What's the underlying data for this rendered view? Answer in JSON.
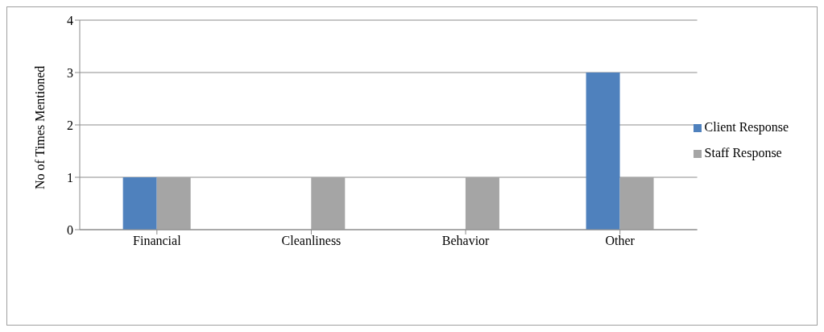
{
  "chart_data": {
    "type": "bar",
    "ylabel": "No of Times Mentioned",
    "categories": [
      "Financial",
      "Cleanliness",
      "Behavior",
      "Other"
    ],
    "series": [
      {
        "name": "Client Response",
        "color": "#4f81bd",
        "values": [
          1,
          0,
          0,
          3
        ]
      },
      {
        "name": "Staff Response",
        "color": "#a5a5a5",
        "values": [
          1,
          1,
          1,
          1
        ]
      }
    ],
    "ylim": [
      0,
      4
    ],
    "yticks": [
      0,
      1,
      2,
      3,
      4
    ],
    "grid": "y",
    "legend": "right"
  }
}
